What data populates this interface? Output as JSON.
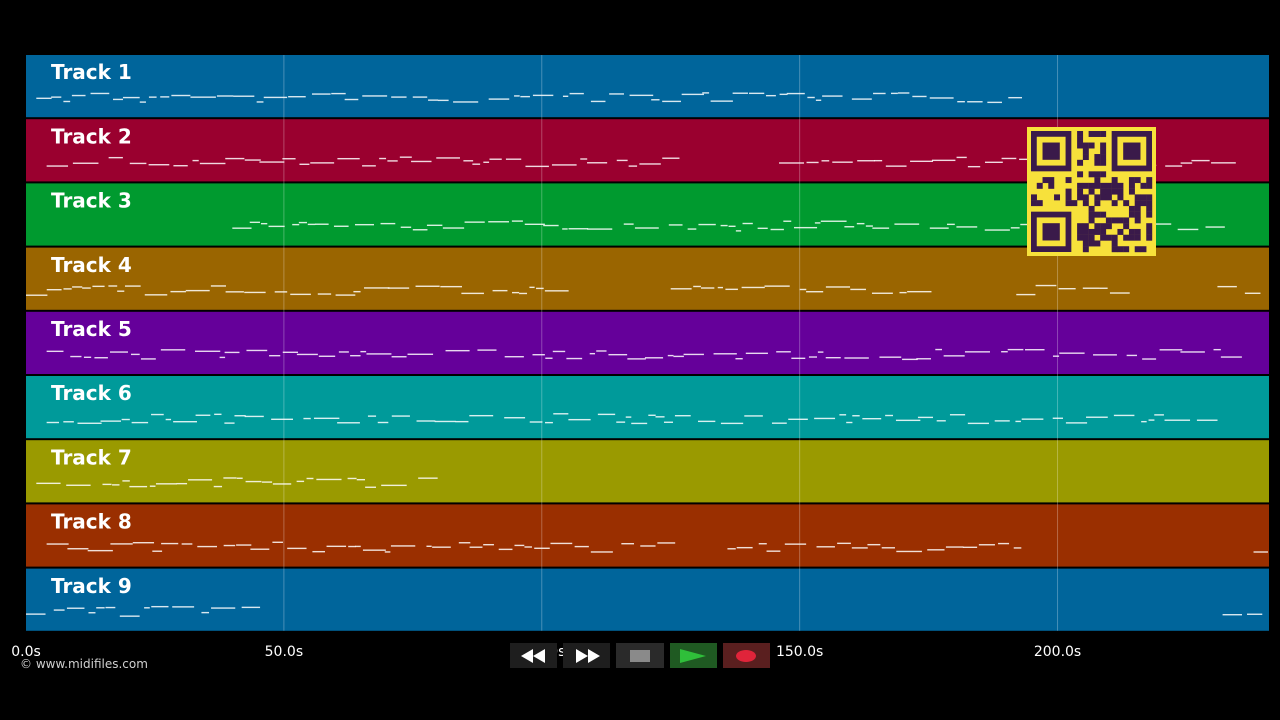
{
  "copyright": "© www.midifiles.com",
  "tracks": [
    {
      "label": "Track 1",
      "color": "#00659b"
    },
    {
      "label": "Track 2",
      "color": "#9a002f"
    },
    {
      "label": "Track 3",
      "color": "#009a2f"
    },
    {
      "label": "Track 4",
      "color": "#9a6500"
    },
    {
      "label": "Track 5",
      "color": "#65009a"
    },
    {
      "label": "Track 6",
      "color": "#009a9a"
    },
    {
      "label": "Track 7",
      "color": "#9a9a00"
    },
    {
      "label": "Track 8",
      "color": "#9a2f00"
    },
    {
      "label": "Track 9",
      "color": "#00659b"
    }
  ],
  "time_axis": {
    "tick_labels": [
      "0.0s",
      "50.0s",
      "100.0s",
      "150.0s",
      "200.0s"
    ],
    "max_seconds": 241
  },
  "transport": {
    "rewind": "rewind-icon",
    "fast_forward": "fast-forward-icon",
    "stop": "stop-icon",
    "play": "play-icon",
    "record": "record-icon",
    "colors": {
      "rewind_bg": "#1e1e1e",
      "ff_bg": "#1e1e1e",
      "stop_bg": "#2a2a2a",
      "play_bg": "#1f5a22",
      "record_bg": "#5a1f1f",
      "play_icon": "#2fbf3a",
      "record_icon": "#e0243a"
    }
  },
  "qr_code": {
    "icon": "qr-code-icon",
    "bg": "#f7e13b",
    "fg": "#3a1a4a"
  }
}
